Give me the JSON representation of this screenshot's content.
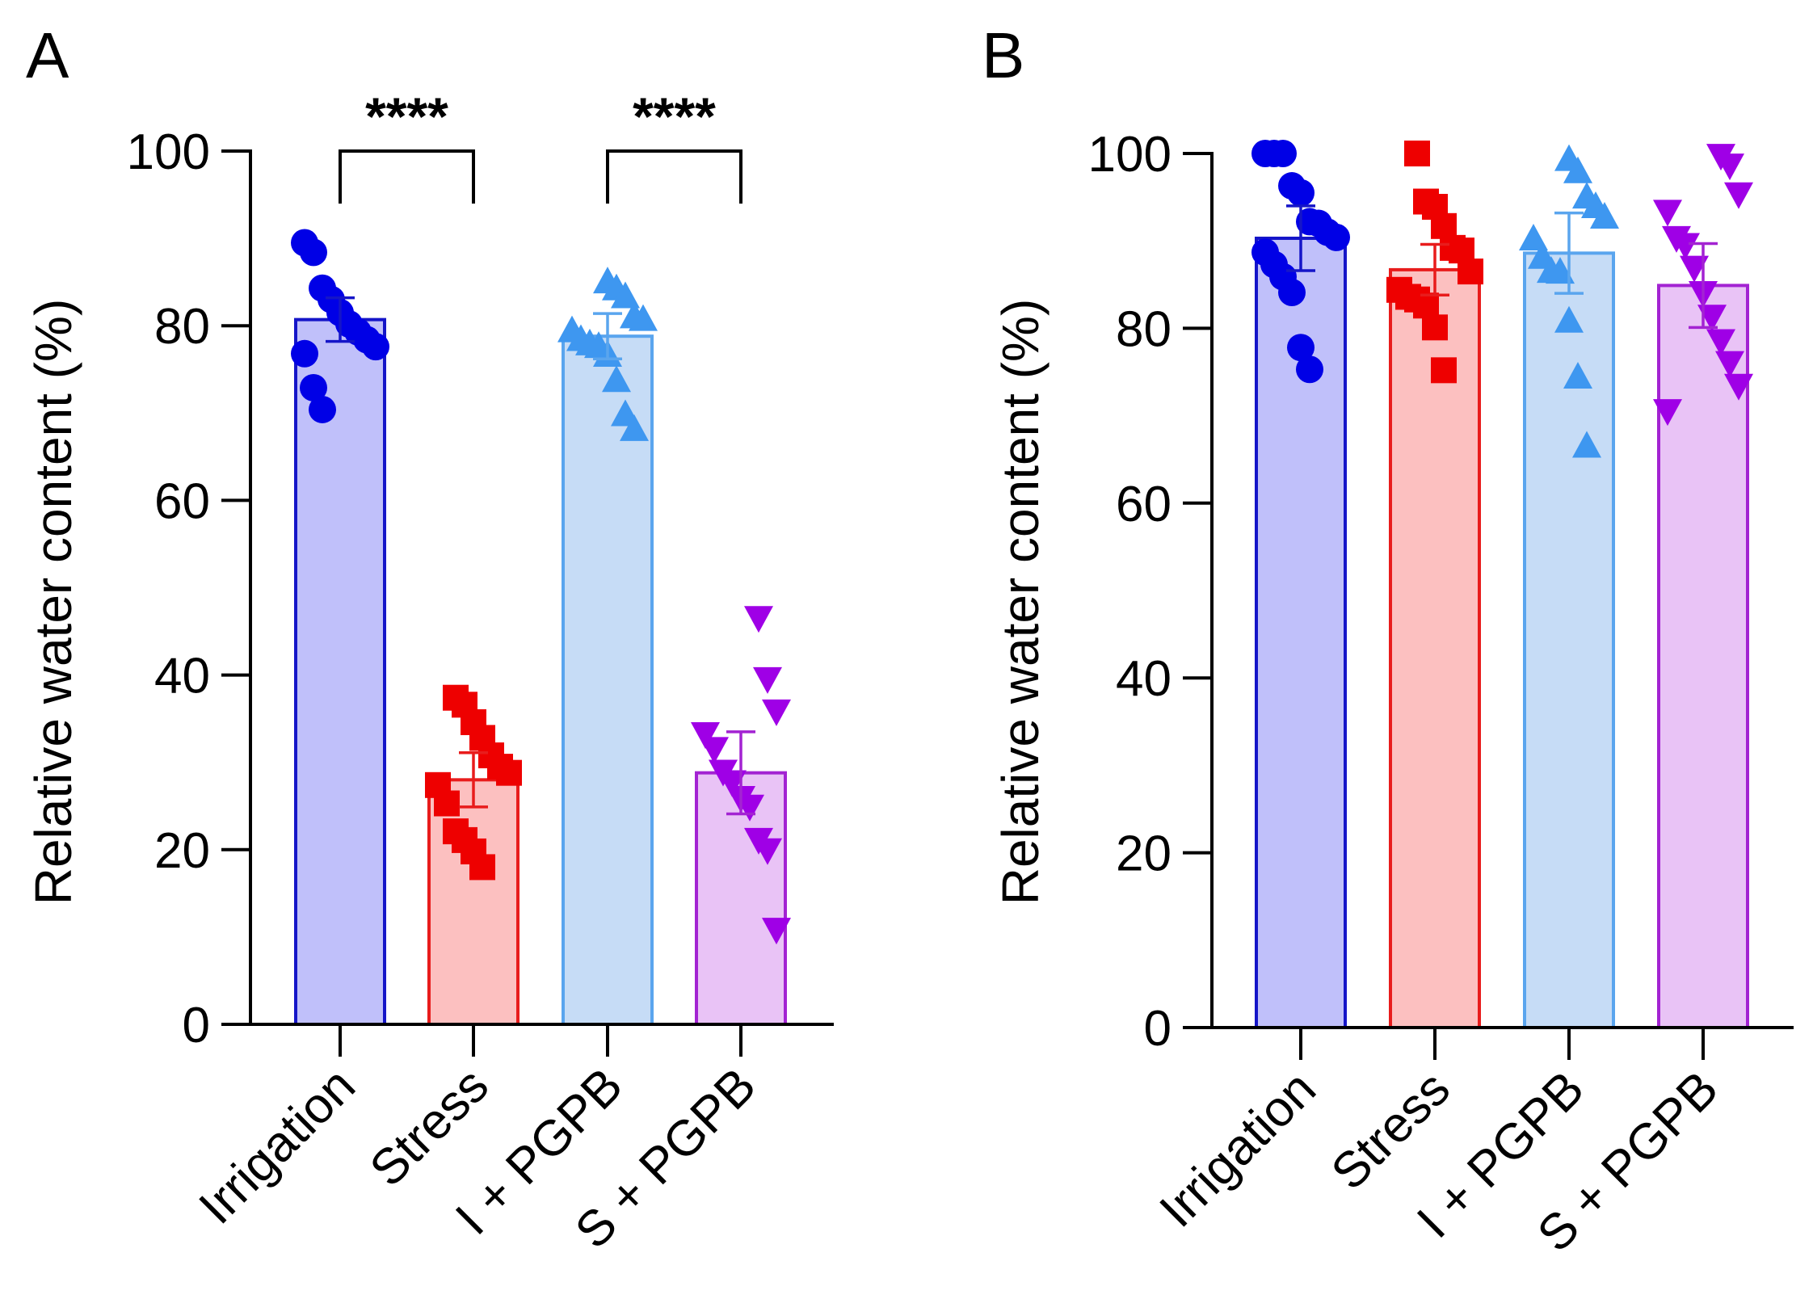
{
  "panels": [
    {
      "label": "A",
      "chart_data": {
        "type": "bar",
        "ylabel": "Relative water content (%)",
        "ylim": [
          0,
          100
        ],
        "yticks": [
          0,
          20,
          40,
          60,
          80,
          100
        ],
        "categories": [
          "Irrigation",
          "Stress",
          "I + PGPB",
          "S + PGPB"
        ],
        "means": [
          80.7,
          28.0,
          78.8,
          28.8
        ],
        "errors": [
          2.5,
          3.1,
          2.6,
          4.7
        ],
        "points": [
          [
            89.5,
            88.4,
            84.3,
            83.0,
            81.5,
            80.2,
            79.3,
            78.4,
            77.6,
            76.8,
            72.9,
            70.4
          ],
          [
            37.4,
            36.6,
            34.6,
            32.8,
            30.8,
            29.5,
            28.8,
            27.4,
            25.3,
            22.1,
            21.1,
            19.8,
            18.0
          ],
          [
            85.0,
            84.2,
            83.3,
            81.0,
            80.7,
            79.4,
            78.4,
            77.9,
            77.6,
            76.6,
            73.7,
            69.8,
            68.1
          ],
          [
            46.6,
            39.6,
            35.9,
            33.3,
            31.6,
            29.0,
            27.8,
            26.0,
            25.0,
            21.2,
            20.0,
            10.9
          ]
        ],
        "significance": [
          {
            "from": 0,
            "to": 1,
            "label": "****"
          },
          {
            "from": 2,
            "to": 3,
            "label": "****"
          }
        ],
        "colors": {
          "edge": [
            "#1515c8",
            "#e81c1c",
            "#5aa5ee",
            "#a323d2"
          ],
          "fill": [
            "#c0c0fa",
            "#fcc0c0",
            "#c6dcf6",
            "#e9c3f6"
          ],
          "marker": [
            "#0000e6",
            "#ee0000",
            "#3e97f0",
            "#9f00e6"
          ]
        },
        "markers": [
          "circle",
          "square",
          "triangle-up",
          "triangle-down"
        ]
      }
    },
    {
      "label": "B",
      "chart_data": {
        "type": "bar",
        "ylabel": "Relative water content (%)",
        "ylim": [
          0,
          100
        ],
        "yticks": [
          0,
          20,
          40,
          60,
          80,
          100
        ],
        "categories": [
          "Irrigation",
          "Stress",
          "I + PGPB",
          "S + PGPB"
        ],
        "means": [
          90.3,
          86.7,
          88.6,
          84.9
        ],
        "errors": [
          3.7,
          2.9,
          4.6,
          4.8
        ],
        "points": [
          [
            100,
            100,
            100,
            96.3,
            95.5,
            92.2,
            92.0,
            91.0,
            90.4,
            88.7,
            87.3,
            85.9,
            84.1,
            77.8,
            75.3
          ],
          [
            100,
            94.5,
            93.9,
            91.7,
            89.2,
            88.9,
            86.5,
            84.4,
            83.6,
            83.3,
            82.6,
            80.1,
            75.2
          ],
          [
            99.3,
            97.9,
            95.0,
            93.9,
            92.7,
            90.2,
            88.1,
            86.5,
            86.4,
            80.8,
            74.4,
            66.5
          ],
          [
            99.8,
            98.7,
            95.4,
            93.4,
            90.4,
            89.6,
            87.0,
            84.1,
            81.4,
            78.6,
            76.1,
            73.5,
            70.6
          ]
        ],
        "significance": [],
        "colors": {
          "edge": [
            "#1515c8",
            "#e81c1c",
            "#5aa5ee",
            "#a323d2"
          ],
          "fill": [
            "#c0c0fa",
            "#fcc0c0",
            "#c6dcf6",
            "#e9c3f6"
          ],
          "marker": [
            "#0000e6",
            "#ee0000",
            "#3e97f0",
            "#9f00e6"
          ]
        },
        "markers": [
          "circle",
          "square",
          "triangle-up",
          "triangle-down"
        ]
      }
    }
  ]
}
